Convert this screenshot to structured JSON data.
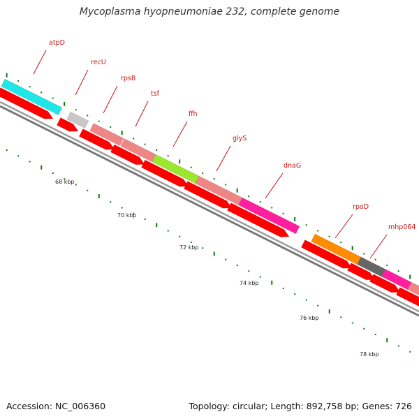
{
  "title": "Mycoplasma hyopneumoniae 232, complete genome",
  "footer": {
    "accession": "Accession: NC_006360",
    "summary": "Topology: circular; Length: 892,758 bp; Genes: 726"
  },
  "colors": {
    "backbone": "#777777",
    "cds": "#ff0000",
    "tick": "#117711",
    "gene_label": "#cc1111"
  },
  "genes": [
    {
      "name": "atpD",
      "color": "#22e6e6"
    },
    {
      "name": "recU",
      "color": "#c8c8c8"
    },
    {
      "name": "rpsB",
      "color": "#ef8686"
    },
    {
      "name": "tsf",
      "color": "#ef8686"
    },
    {
      "name": "ffh",
      "color": "#9be62e"
    },
    {
      "name": "glyS",
      "color": "#ef8686"
    },
    {
      "name": "dnaG",
      "color": "#ff1f9f"
    },
    {
      "name": "rpoD",
      "color": "#ff8c00"
    },
    {
      "name": "mhp064",
      "color": "#ff1f9f"
    }
  ],
  "scale_labels": [
    "68 kbp",
    "70 kbp",
    "72 kbp",
    "74 kbp",
    "76 kbp",
    "78 kbp"
  ]
}
